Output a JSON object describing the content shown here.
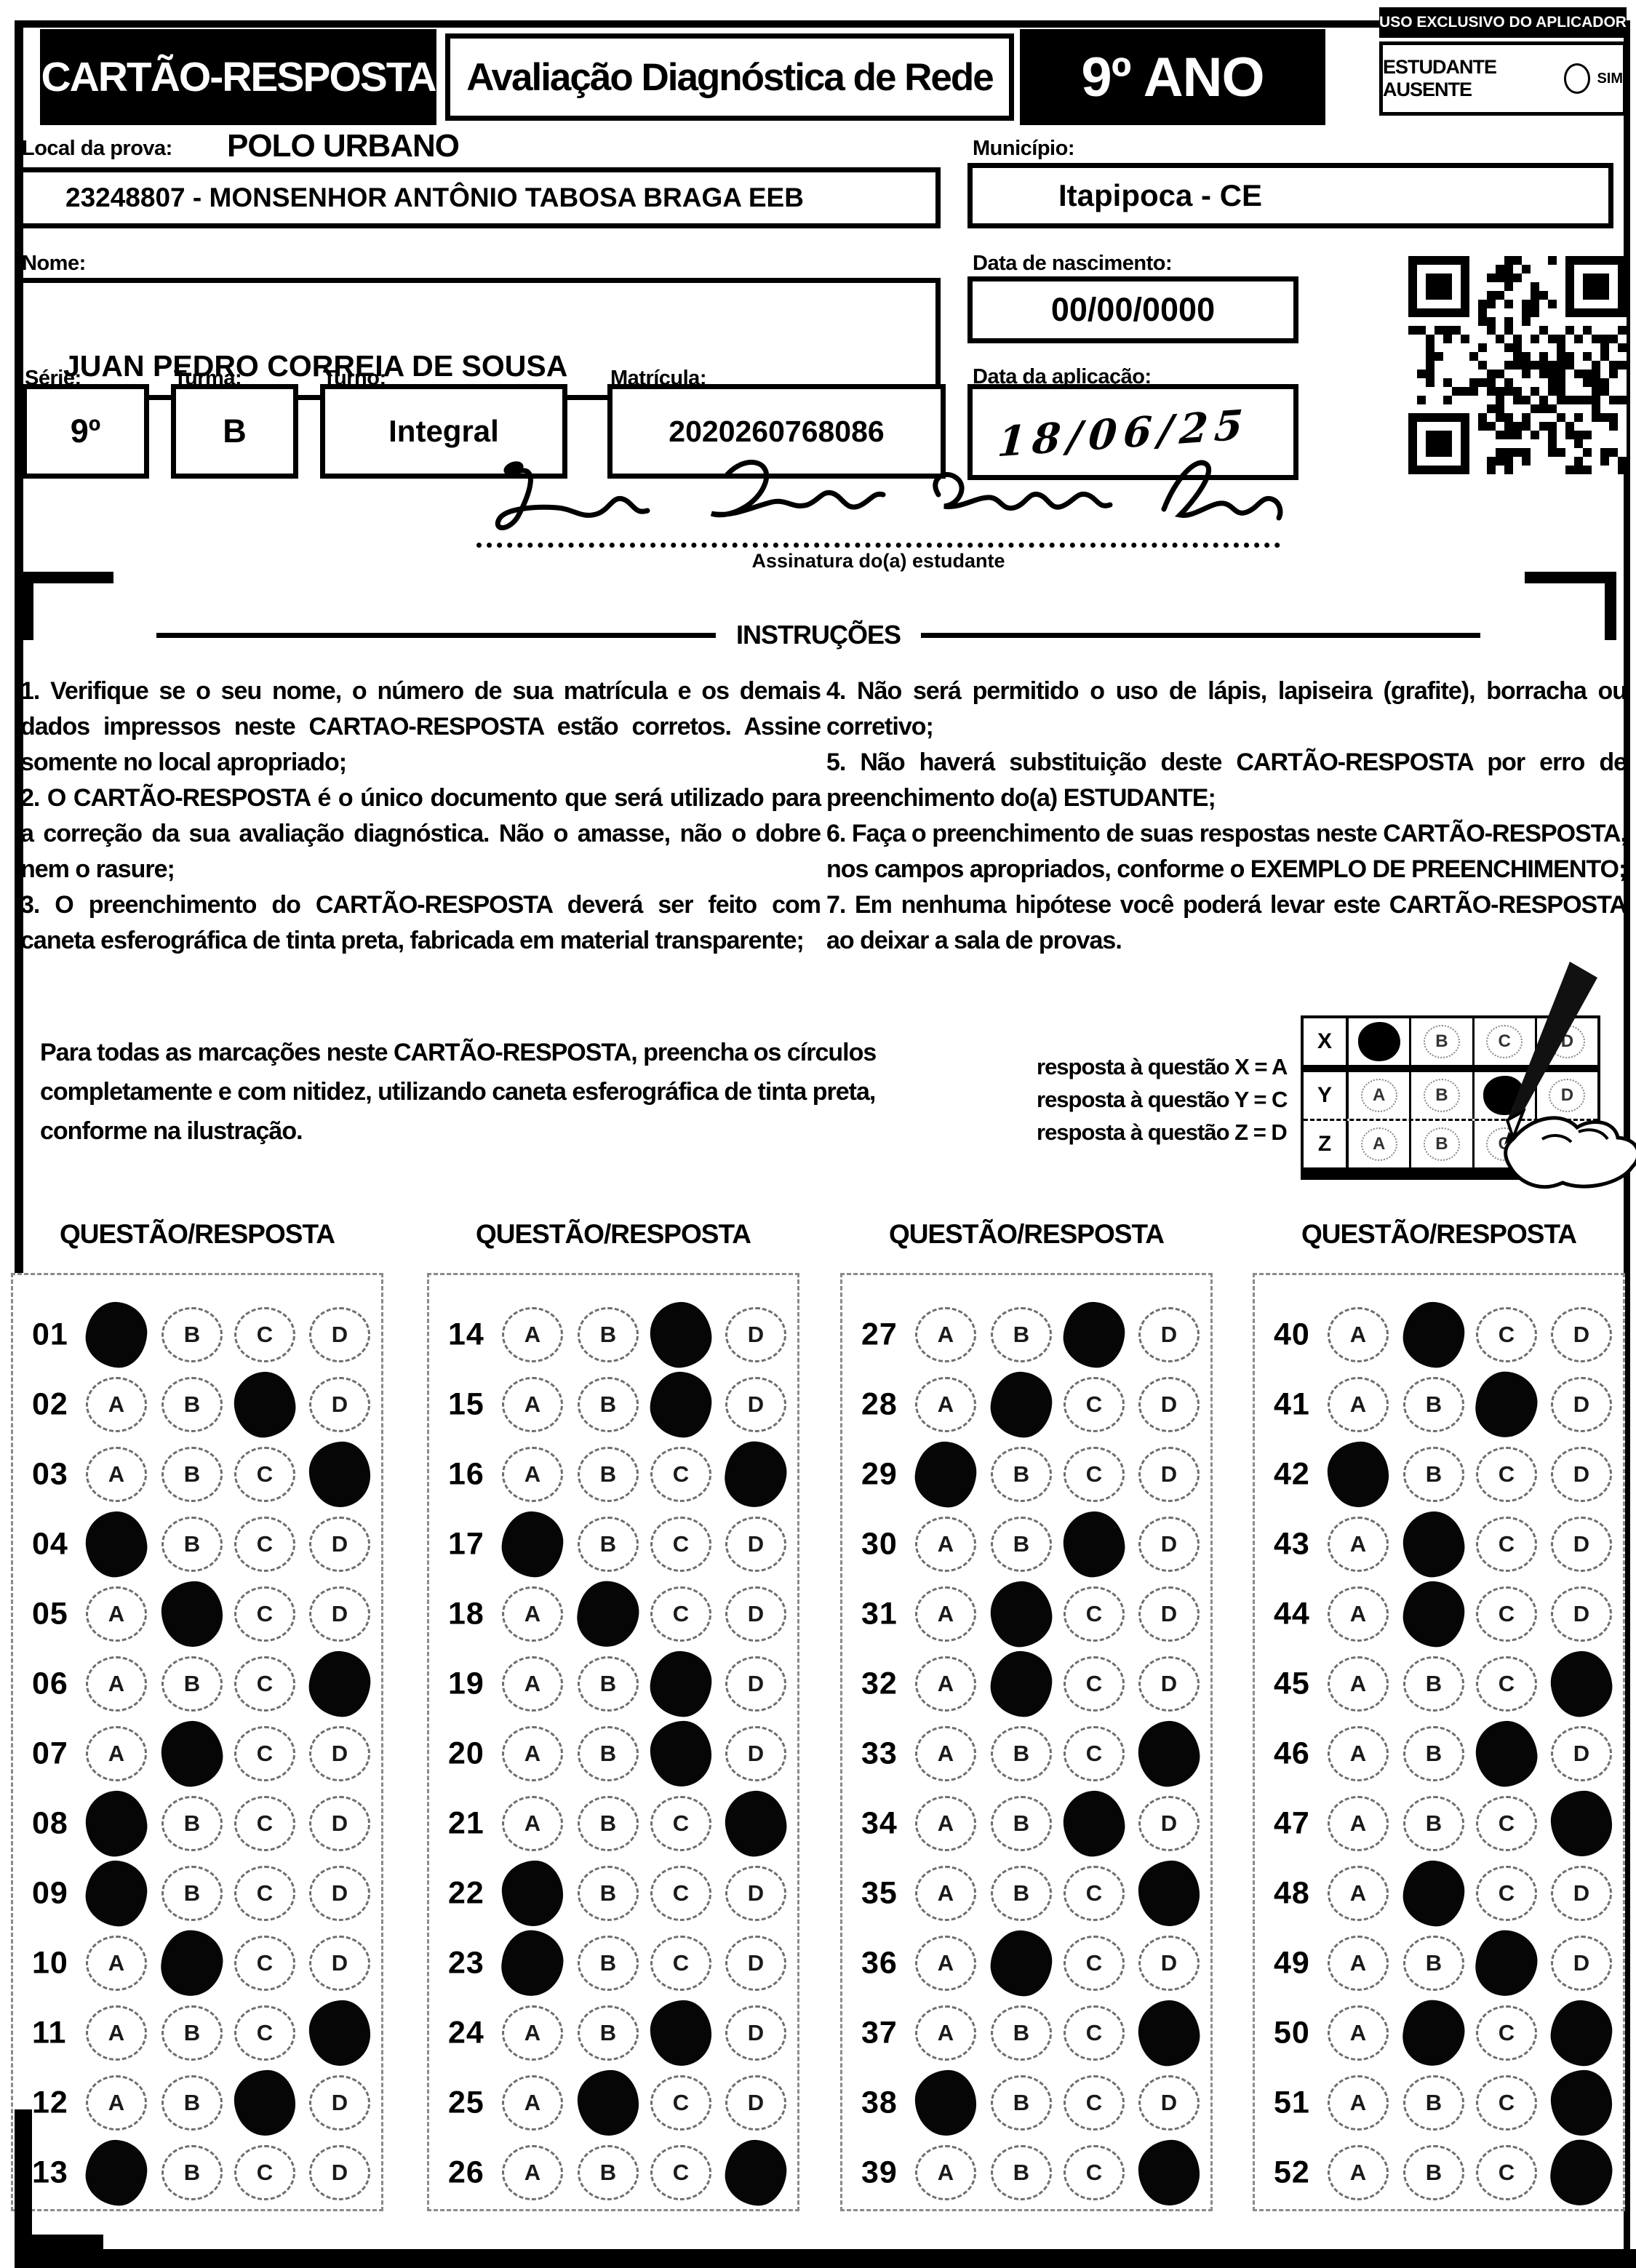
{
  "header": {
    "card_title": "CARTÃO-RESPOSTA",
    "exam_title": "Avaliação Diagnóstica de Rede",
    "grade": "9º ANO",
    "uso_exclusivo": "USO EXCLUSIVO DO APLICADOR",
    "ausente_label": "ESTUDANTE AUSENTE",
    "ausente_option": "SIM"
  },
  "fields": {
    "local_label": "Local da prova:",
    "local_value": "POLO URBANO",
    "school": "23248807 - MONSENHOR ANTÔNIO TABOSA BRAGA EEB",
    "municipio_label": "Município:",
    "municipio_value": "Itapipoca - CE",
    "nome_label": "Nome:",
    "nome_value": "JUAN PEDRO CORREIA DE SOUSA",
    "nascimento_label": "Data de nascimento:",
    "nascimento_value": "00/00/0000",
    "serie_label": "Série:",
    "serie_value": "9º",
    "turma_label": "Turma:",
    "turma_value": "B",
    "turno_label": "Turno:",
    "turno_value": "Integral",
    "matricula_label": "Matrícula:",
    "matricula_value": "2020260768086",
    "aplicacao_label": "Data da aplicação:",
    "aplicacao_value": "18/06/25",
    "assinatura_caption": "Assinatura do(a) estudante"
  },
  "instructions": {
    "title": "INSTRUÇÕES",
    "left": [
      "1. Verifique se o seu nome, o número de sua matrícula e os demais dados impressos neste CARTAO-RESPOSTA estão corretos. Assine somente no local apropriado;",
      "2. O CARTÃO-RESPOSTA é o único documento que será utilizado para a correção da sua avaliação diagnóstica. Não o amasse, não o dobre nem o rasure;",
      "3. O preenchimento do CARTÃO-RESPOSTA deverá ser feito com caneta esferográfica de tinta preta, fabricada em material transparente;"
    ],
    "right": [
      "4. Não será permitido o uso de lápis, lapiseira (grafite), borracha ou corretivo;",
      "5. Não haverá substituição deste CARTÃO-RESPOSTA por erro de preenchimento do(a) ESTUDANTE;",
      "6. Faça o preenchimento de suas respostas neste CARTÃO-RESPOSTA, nos campos apropriados, conforme o EXEMPLO DE PREENCHIMENTO;",
      "7. Em nenhuma hipótese você poderá levar este CARTÃO-RESPOSTA ao deixar a sala de provas."
    ]
  },
  "fill_note": "Para todas as marcações neste CARTÃO-RESPOSTA, preencha os círculos completamente e com nitidez, utilizando caneta esferográfica de tinta preta, conforme na ilustração.",
  "example": {
    "captions": [
      "resposta à questão X = A",
      "resposta à questão Y = C",
      "resposta à questão Z = D"
    ],
    "options": [
      "A",
      "B",
      "C",
      "D"
    ],
    "rows": [
      {
        "label": "X",
        "marked": "A"
      },
      {
        "label": "Y",
        "marked": "C"
      },
      {
        "label": "Z",
        "marked": "D"
      }
    ]
  },
  "answers": {
    "column_header": "QUESTÃO/RESPOSTA",
    "options": [
      "A",
      "B",
      "C",
      "D"
    ],
    "columns": [
      [
        {
          "q": "01",
          "marked": [
            "A"
          ]
        },
        {
          "q": "02",
          "marked": [
            "C"
          ]
        },
        {
          "q": "03",
          "marked": [
            "D"
          ]
        },
        {
          "q": "04",
          "marked": [
            "A"
          ]
        },
        {
          "q": "05",
          "marked": [
            "B"
          ]
        },
        {
          "q": "06",
          "marked": [
            "D"
          ]
        },
        {
          "q": "07",
          "marked": [
            "B"
          ]
        },
        {
          "q": "08",
          "marked": [
            "A"
          ]
        },
        {
          "q": "09",
          "marked": [
            "A"
          ]
        },
        {
          "q": "10",
          "marked": [
            "B"
          ]
        },
        {
          "q": "11",
          "marked": [
            "D"
          ]
        },
        {
          "q": "12",
          "marked": [
            "C"
          ]
        },
        {
          "q": "13",
          "marked": [
            "A"
          ]
        }
      ],
      [
        {
          "q": "14",
          "marked": [
            "C"
          ]
        },
        {
          "q": "15",
          "marked": [
            "C"
          ]
        },
        {
          "q": "16",
          "marked": [
            "D"
          ]
        },
        {
          "q": "17",
          "marked": [
            "A"
          ]
        },
        {
          "q": "18",
          "marked": [
            "B"
          ]
        },
        {
          "q": "19",
          "marked": [
            "C"
          ]
        },
        {
          "q": "20",
          "marked": [
            "C"
          ]
        },
        {
          "q": "21",
          "marked": [
            "D"
          ]
        },
        {
          "q": "22",
          "marked": [
            "A"
          ]
        },
        {
          "q": "23",
          "marked": [
            "A"
          ]
        },
        {
          "q": "24",
          "marked": [
            "C"
          ]
        },
        {
          "q": "25",
          "marked": [
            "B"
          ]
        },
        {
          "q": "26",
          "marked": [
            "D"
          ]
        }
      ],
      [
        {
          "q": "27",
          "marked": [
            "C"
          ]
        },
        {
          "q": "28",
          "marked": [
            "B"
          ]
        },
        {
          "q": "29",
          "marked": [
            "A"
          ]
        },
        {
          "q": "30",
          "marked": [
            "C"
          ]
        },
        {
          "q": "31",
          "marked": [
            "B"
          ]
        },
        {
          "q": "32",
          "marked": [
            "B"
          ]
        },
        {
          "q": "33",
          "marked": [
            "D"
          ]
        },
        {
          "q": "34",
          "marked": [
            "C"
          ]
        },
        {
          "q": "35",
          "marked": [
            "D"
          ]
        },
        {
          "q": "36",
          "marked": [
            "B"
          ]
        },
        {
          "q": "37",
          "marked": [
            "D"
          ]
        },
        {
          "q": "38",
          "marked": [
            "A"
          ]
        },
        {
          "q": "39",
          "marked": [
            "D"
          ]
        }
      ],
      [
        {
          "q": "40",
          "marked": [
            "B"
          ]
        },
        {
          "q": "41",
          "marked": [
            "C"
          ]
        },
        {
          "q": "42",
          "marked": [
            "A"
          ]
        },
        {
          "q": "43",
          "marked": [
            "B"
          ]
        },
        {
          "q": "44",
          "marked": [
            "B"
          ]
        },
        {
          "q": "45",
          "marked": [
            "D"
          ]
        },
        {
          "q": "46",
          "marked": [
            "C"
          ]
        },
        {
          "q": "47",
          "marked": [
            "D"
          ]
        },
        {
          "q": "48",
          "marked": [
            "B"
          ]
        },
        {
          "q": "49",
          "marked": [
            "C"
          ]
        },
        {
          "q": "50",
          "marked": [
            "B",
            "D"
          ]
        },
        {
          "q": "51",
          "marked": [
            "D"
          ]
        },
        {
          "q": "52",
          "marked": [
            "D"
          ]
        }
      ]
    ]
  }
}
